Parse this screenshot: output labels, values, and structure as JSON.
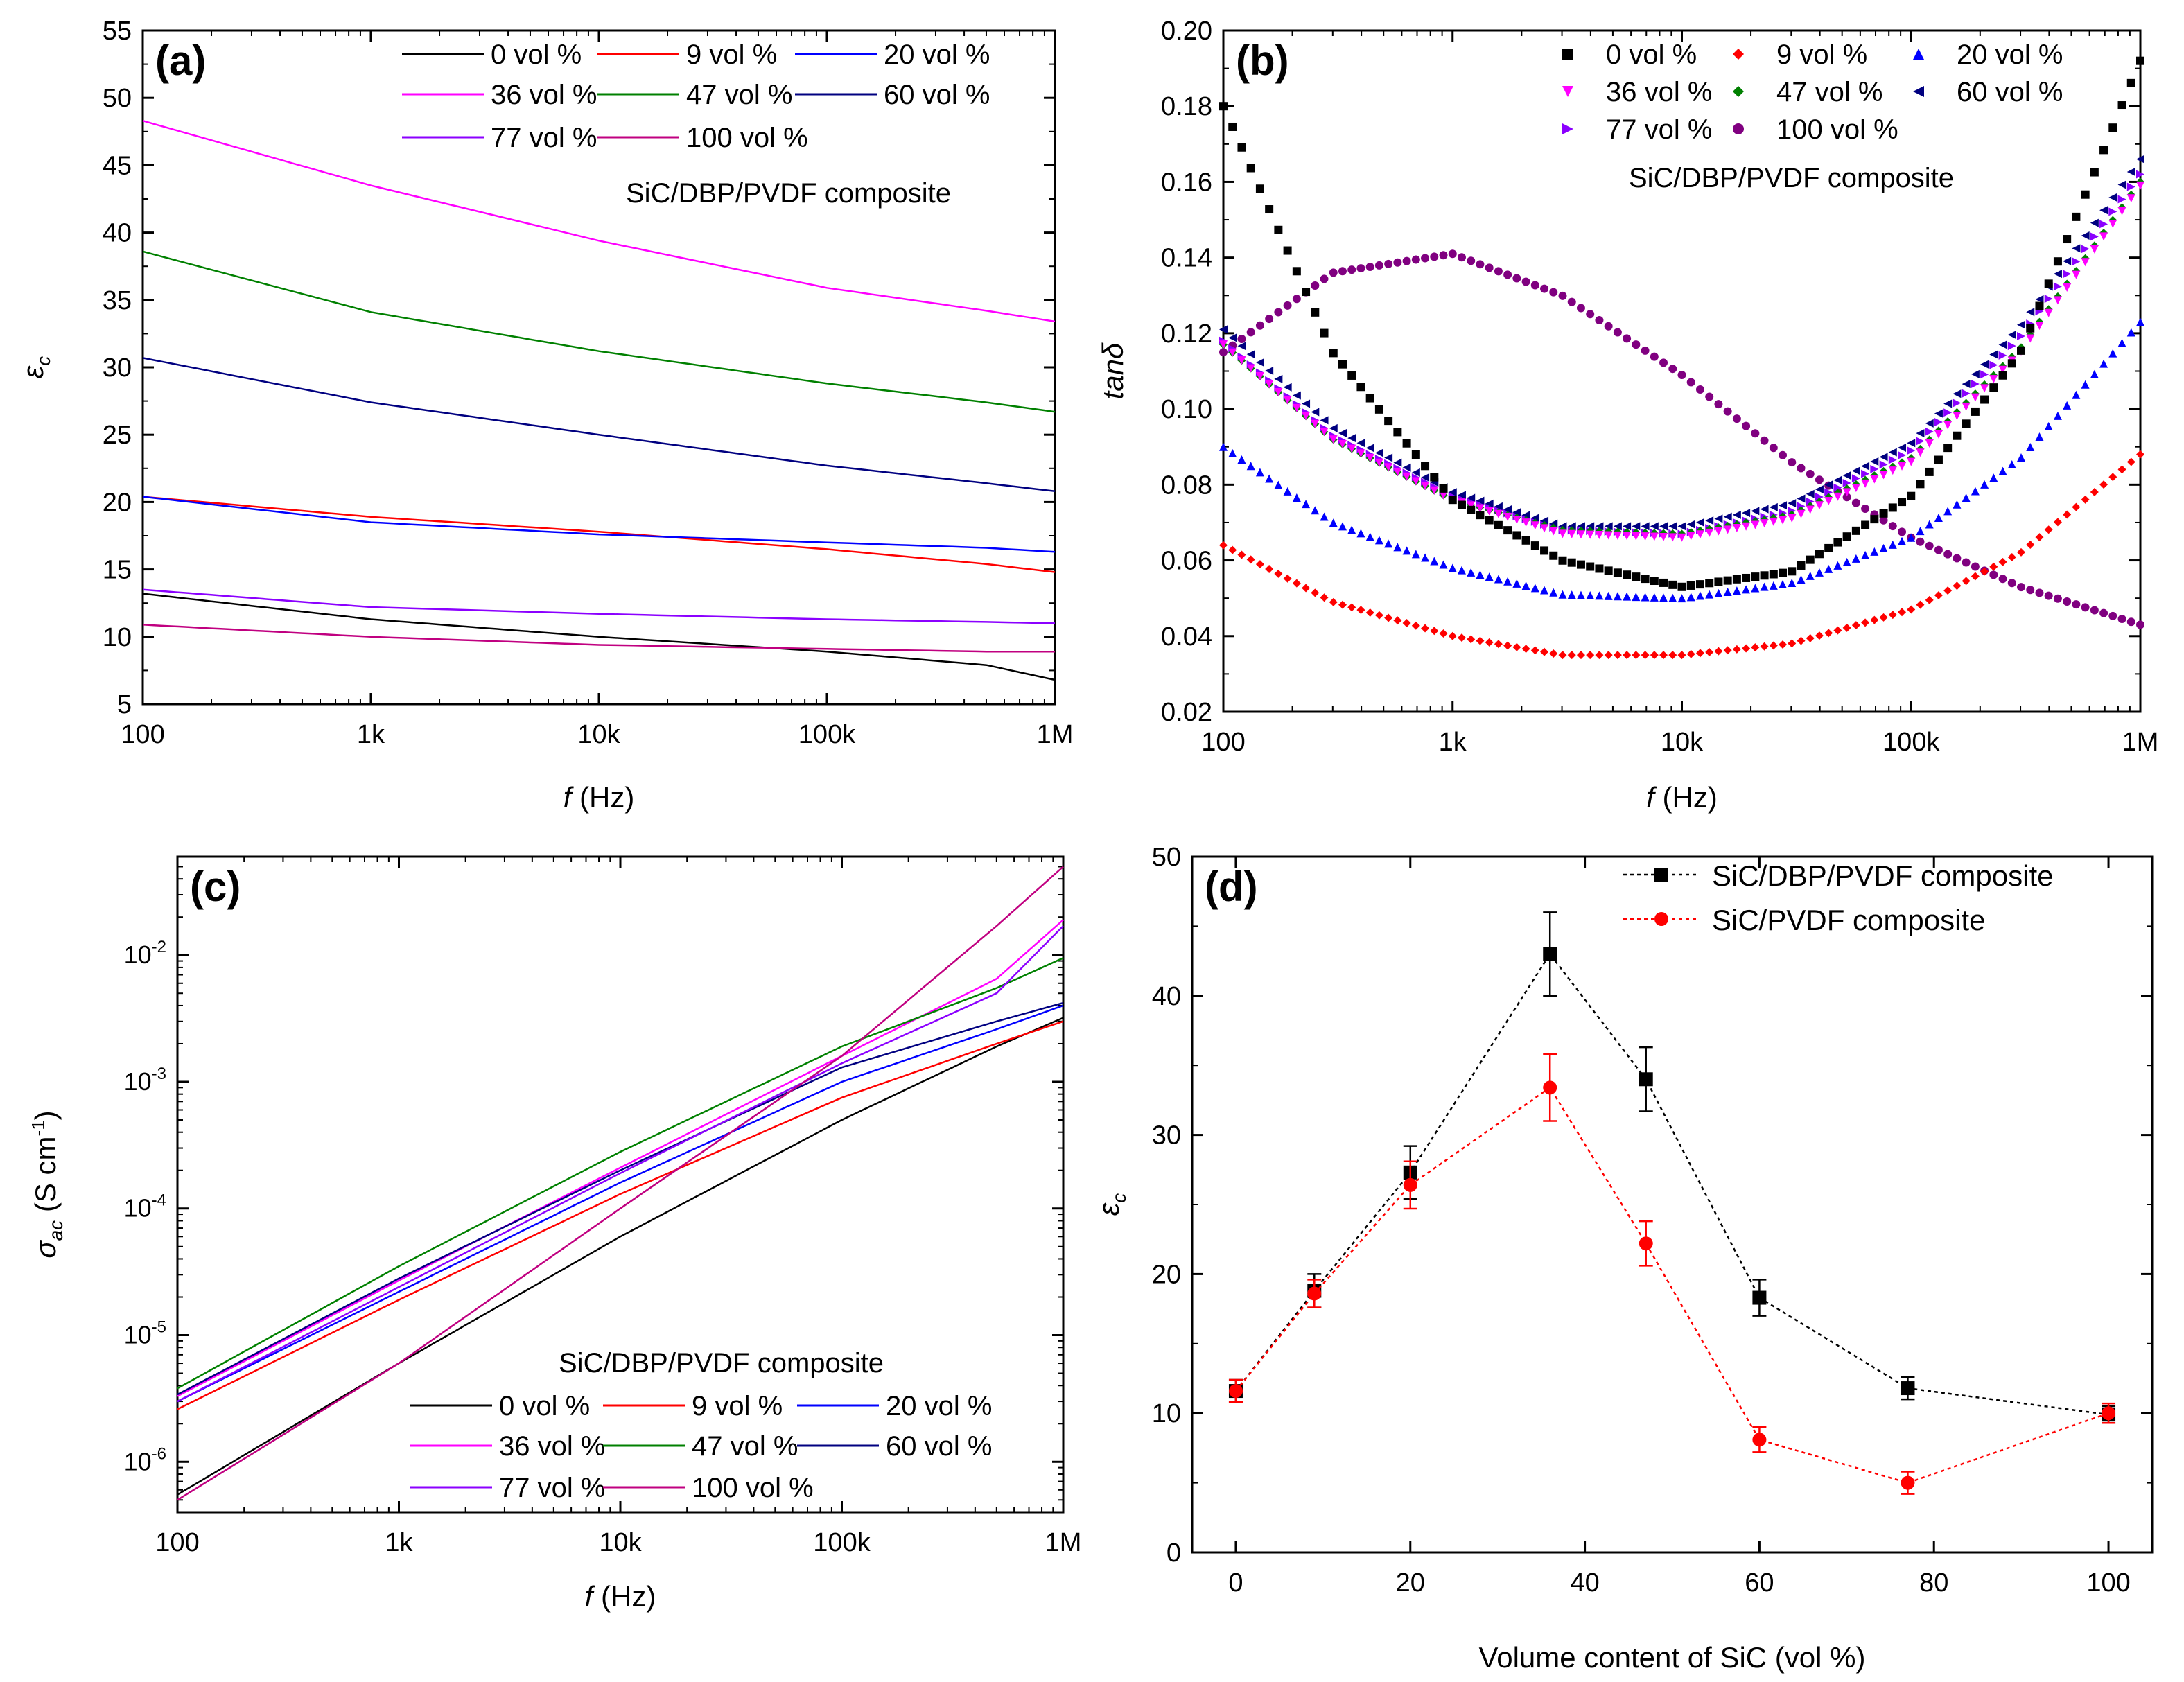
{
  "chart_data": [
    {
      "id": "a",
      "type": "line",
      "panel_label": "(a)",
      "annotation": "SiC/DBP/PVDF composite",
      "xlabel_italic": "f",
      "xlabel_rest": " (Hz)",
      "ylabel_main": "ε",
      "ylabel_sub": "c",
      "xscale": "log",
      "xlim": [
        100,
        1000000
      ],
      "ylim": [
        5,
        55
      ],
      "xticks": [
        {
          "v": 100,
          "t": "100"
        },
        {
          "v": 1000,
          "t": "1k"
        },
        {
          "v": 10000,
          "t": "10k"
        },
        {
          "v": 100000,
          "t": "100k"
        },
        {
          "v": 1000000,
          "t": "1M"
        }
      ],
      "yticks": [
        {
          "v": 5,
          "t": "5"
        },
        {
          "v": 10,
          "t": "10"
        },
        {
          "v": 15,
          "t": "15"
        },
        {
          "v": 20,
          "t": "20"
        },
        {
          "v": 25,
          "t": "25"
        },
        {
          "v": 30,
          "t": "30"
        },
        {
          "v": 35,
          "t": "35"
        },
        {
          "v": 40,
          "t": "40"
        },
        {
          "v": 45,
          "t": "45"
        },
        {
          "v": 50,
          "t": "50"
        },
        {
          "v": 55,
          "t": "55"
        }
      ],
      "x": [
        100,
        1000,
        10000,
        100000,
        500000,
        1000000
      ],
      "series": [
        {
          "name": "0 vol %",
          "color": "#000000",
          "values": [
            13.2,
            11.3,
            10.0,
            8.9,
            7.9,
            6.8
          ]
        },
        {
          "name": "9 vol %",
          "color": "#ff0000",
          "values": [
            20.4,
            18.9,
            17.8,
            16.5,
            15.4,
            14.8
          ]
        },
        {
          "name": "20 vol %",
          "color": "#0000ff",
          "values": [
            20.4,
            18.5,
            17.6,
            17.0,
            16.6,
            16.3
          ]
        },
        {
          "name": "36 vol %",
          "color": "#ff00ff",
          "values": [
            48.3,
            43.5,
            39.4,
            35.9,
            34.2,
            33.4
          ]
        },
        {
          "name": "47 vol %",
          "color": "#008000",
          "values": [
            38.6,
            34.1,
            31.2,
            28.8,
            27.4,
            26.7
          ]
        },
        {
          "name": "60 vol %",
          "color": "#000080",
          "values": [
            30.7,
            27.4,
            25.0,
            22.7,
            21.4,
            20.8
          ]
        },
        {
          "name": "77 vol %",
          "color": "#8b00ff",
          "values": [
            13.5,
            12.2,
            11.7,
            11.3,
            11.1,
            11.0
          ]
        },
        {
          "name": "100 vol %",
          "color": "#c00080",
          "values": [
            10.9,
            10.0,
            9.4,
            9.1,
            8.9,
            8.9
          ]
        }
      ]
    },
    {
      "id": "b",
      "type": "scatter",
      "panel_label": "(b)",
      "annotation": "SiC/DBP/PVDF composite",
      "xlabel_italic": "f",
      "xlabel_rest": " (Hz)",
      "ylabel_main": "tanδ",
      "ylabel_sub": "",
      "xscale": "log",
      "xlim": [
        100,
        1000000
      ],
      "ylim": [
        0.02,
        0.2
      ],
      "xticks": [
        {
          "v": 100,
          "t": "100"
        },
        {
          "v": 1000,
          "t": "1k"
        },
        {
          "v": 10000,
          "t": "10k"
        },
        {
          "v": 100000,
          "t": "100k"
        },
        {
          "v": 1000000,
          "t": "1M"
        }
      ],
      "yticks": [
        {
          "v": 0.02,
          "t": "0.02"
        },
        {
          "v": 0.04,
          "t": "0.04"
        },
        {
          "v": 0.06,
          "t": "0.06"
        },
        {
          "v": 0.08,
          "t": "0.08"
        },
        {
          "v": 0.1,
          "t": "0.10"
        },
        {
          "v": 0.12,
          "t": "0.12"
        },
        {
          "v": 0.14,
          "t": "0.14"
        },
        {
          "v": 0.16,
          "t": "0.16"
        },
        {
          "v": 0.18,
          "t": "0.18"
        },
        {
          "v": 0.2,
          "t": "0.20"
        }
      ],
      "x": [
        100,
        300,
        1000,
        3000,
        10000,
        30000,
        100000,
        300000,
        1000000
      ],
      "series": [
        {
          "name": "0 vol %",
          "color": "#000000",
          "marker": "square",
          "values": [
            0.18,
            0.115,
            0.076,
            0.06,
            0.053,
            0.057,
            0.077,
            0.115,
            0.192
          ]
        },
        {
          "name": "9 vol %",
          "color": "#ff0000",
          "marker": "diamond",
          "values": [
            0.064,
            0.049,
            0.04,
            0.035,
            0.035,
            0.038,
            0.047,
            0.062,
            0.088
          ]
        },
        {
          "name": "20 vol %",
          "color": "#0000ff",
          "marker": "triangle-up",
          "values": [
            0.09,
            0.07,
            0.058,
            0.051,
            0.05,
            0.054,
            0.066,
            0.087,
            0.123
          ]
        },
        {
          "name": "36 vol %",
          "color": "#ff00ff",
          "marker": "triangle-down",
          "values": [
            0.117,
            0.092,
            0.076,
            0.067,
            0.066,
            0.071,
            0.086,
            0.115,
            0.159
          ]
        },
        {
          "name": "47 vol %",
          "color": "#008000",
          "marker": "diamond",
          "values": [
            0.117,
            0.092,
            0.076,
            0.068,
            0.067,
            0.072,
            0.087,
            0.116,
            0.16
          ]
        },
        {
          "name": "60 vol %",
          "color": "#000080",
          "marker": "triangle-left",
          "values": [
            0.121,
            0.095,
            0.078,
            0.069,
            0.069,
            0.075,
            0.091,
            0.122,
            0.166
          ]
        },
        {
          "name": "77 vol %",
          "color": "#8b00ff",
          "marker": "triangle-right",
          "values": [
            0.118,
            0.093,
            0.077,
            0.068,
            0.067,
            0.073,
            0.089,
            0.119,
            0.162
          ]
        },
        {
          "name": "100 vol %",
          "color": "#800080",
          "marker": "circle",
          "values": [
            0.115,
            0.136,
            0.141,
            0.13,
            0.109,
            0.086,
            0.066,
            0.053,
            0.043
          ]
        }
      ]
    },
    {
      "id": "c",
      "type": "line",
      "panel_label": "(c)",
      "annotation": "SiC/DBP/PVDF composite",
      "xlabel_italic": "f",
      "xlabel_rest": " (Hz)",
      "ylabel_main": "σ",
      "ylabel_sub": "ac",
      "ylabel_units": " (S cm",
      "ylabel_units_sup": "-1",
      "ylabel_units_end": ")",
      "xscale": "log",
      "yscale": "log",
      "xlim": [
        100,
        1000000
      ],
      "ylim": [
        4e-07,
        0.06
      ],
      "xticks": [
        {
          "v": 100,
          "t": "100"
        },
        {
          "v": 1000,
          "t": "1k"
        },
        {
          "v": 10000,
          "t": "10k"
        },
        {
          "v": 100000,
          "t": "100k"
        },
        {
          "v": 1000000,
          "t": "1M"
        }
      ],
      "yticks": [
        {
          "v": 1e-06,
          "b": "10",
          "e": "-6"
        },
        {
          "v": 1e-05,
          "b": "10",
          "e": "-5"
        },
        {
          "v": 0.0001,
          "b": "10",
          "e": "-4"
        },
        {
          "v": 0.001,
          "b": "10",
          "e": "-3"
        },
        {
          "v": 0.01,
          "b": "10",
          "e": "-2"
        }
      ],
      "x": [
        100,
        1000,
        10000,
        100000,
        500000,
        1000000
      ],
      "series": [
        {
          "name": "0 vol %",
          "color": "#000000",
          "values": [
            5.5e-07,
            6e-06,
            6e-05,
            0.0005,
            0.0019,
            0.0032
          ]
        },
        {
          "name": "9 vol %",
          "color": "#ff0000",
          "values": [
            2.6e-06,
            1.9e-05,
            0.00013,
            0.00075,
            0.002,
            0.003
          ]
        },
        {
          "name": "20 vol %",
          "color": "#0000ff",
          "values": [
            3e-06,
            2.2e-05,
            0.00016,
            0.001,
            0.0026,
            0.004
          ]
        },
        {
          "name": "36 vol %",
          "color": "#ff00ff",
          "values": [
            3.3e-06,
            2.7e-05,
            0.00021,
            0.0016,
            0.0065,
            0.019
          ]
        },
        {
          "name": "47 vol %",
          "color": "#008000",
          "values": [
            3.8e-06,
            3.5e-05,
            0.00028,
            0.0019,
            0.0055,
            0.0095
          ]
        },
        {
          "name": "60 vol %",
          "color": "#000080",
          "values": [
            3.4e-06,
            2.8e-05,
            0.0002,
            0.0013,
            0.003,
            0.0042
          ]
        },
        {
          "name": "77 vol %",
          "color": "#8b00ff",
          "values": [
            3e-06,
            2.4e-05,
            0.00019,
            0.0014,
            0.005,
            0.017
          ]
        },
        {
          "name": "100 vol %",
          "color": "#c00080",
          "values": [
            5e-07,
            6e-06,
            0.0001,
            0.0016,
            0.017,
            0.05
          ]
        }
      ]
    },
    {
      "id": "d",
      "type": "line",
      "panel_label": "(d)",
      "xlabel": "Volume content of SiC (vol %)",
      "ylabel_main": "ε",
      "ylabel_sub": "c",
      "xlim": [
        -5,
        105
      ],
      "ylim": [
        0,
        50
      ],
      "xticks": [
        {
          "v": 0,
          "t": "0"
        },
        {
          "v": 20,
          "t": "20"
        },
        {
          "v": 40,
          "t": "40"
        },
        {
          "v": 60,
          "t": "60"
        },
        {
          "v": 80,
          "t": "80"
        },
        {
          "v": 100,
          "t": "100"
        }
      ],
      "yticks": [
        {
          "v": 0,
          "t": "0"
        },
        {
          "v": 10,
          "t": "10"
        },
        {
          "v": 20,
          "t": "20"
        },
        {
          "v": 30,
          "t": "30"
        },
        {
          "v": 40,
          "t": "40"
        },
        {
          "v": 50,
          "t": "50"
        }
      ],
      "x": [
        0,
        9,
        20,
        36,
        47,
        60,
        77,
        100
      ],
      "series": [
        {
          "name": "SiC/DBP/PVDF composite",
          "color": "#000000",
          "marker": "square",
          "values": [
            11.6,
            18.8,
            27.3,
            43.0,
            34.0,
            18.3,
            11.8,
            9.9
          ],
          "errors": [
            0.8,
            1.2,
            1.9,
            3.0,
            2.3,
            1.3,
            0.8,
            0.6
          ]
        },
        {
          "name": "SiC/PVDF composite",
          "color": "#ff0000",
          "marker": "circle",
          "values": [
            11.6,
            18.6,
            26.4,
            33.4,
            22.2,
            8.1,
            5.0,
            10.0
          ],
          "errors": [
            0.8,
            1.0,
            1.7,
            2.4,
            1.6,
            0.9,
            0.8,
            0.7
          ]
        }
      ]
    }
  ]
}
